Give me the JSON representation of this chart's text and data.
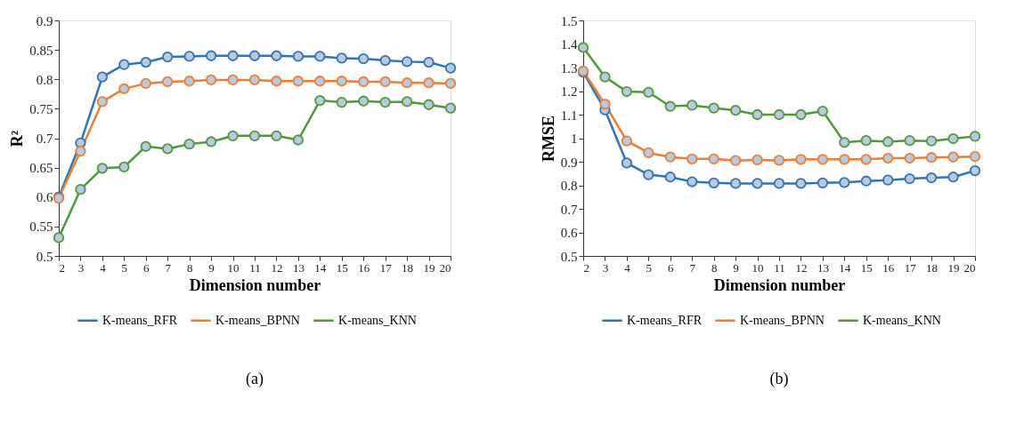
{
  "chart_data": [
    {
      "type": "line",
      "xlabel": "Dimension number",
      "ylabel": "R²",
      "x": [
        2,
        3,
        4,
        5,
        6,
        7,
        8,
        9,
        10,
        11,
        12,
        13,
        14,
        15,
        16,
        17,
        18,
        19,
        20
      ],
      "xlim": [
        2,
        20
      ],
      "xticks": [
        2,
        3,
        4,
        5,
        6,
        7,
        8,
        9,
        10,
        11,
        12,
        13,
        14,
        15,
        16,
        17,
        18,
        19,
        20
      ],
      "ylim": [
        0.5,
        0.9
      ],
      "yticks": [
        0.5,
        0.55,
        0.6,
        0.65,
        0.7,
        0.75,
        0.8,
        0.85,
        0.9
      ],
      "grid": false,
      "legend": "bottom",
      "marker": "circle",
      "line_style": "solid",
      "annotations": [
        "(a)"
      ],
      "series": [
        {
          "name": "K-means_RFR",
          "color": "#2e75b6",
          "values": [
            0.6,
            0.692,
            0.804,
            0.825,
            0.829,
            0.838,
            0.839,
            0.84,
            0.84,
            0.84,
            0.84,
            0.839,
            0.839,
            0.836,
            0.835,
            0.832,
            0.83,
            0.829,
            0.819
          ]
        },
        {
          "name": "K-means_BPNN",
          "color": "#ed7d31",
          "values": [
            0.598,
            0.678,
            0.762,
            0.784,
            0.793,
            0.796,
            0.797,
            0.799,
            0.799,
            0.799,
            0.797,
            0.797,
            0.797,
            0.797,
            0.796,
            0.796,
            0.794,
            0.794,
            0.793
          ]
        },
        {
          "name": "K-means_KNN",
          "color": "#4e9a3a",
          "values": [
            0.531,
            0.613,
            0.649,
            0.651,
            0.686,
            0.682,
            0.69,
            0.694,
            0.704,
            0.704,
            0.704,
            0.697,
            0.764,
            0.761,
            0.763,
            0.761,
            0.762,
            0.757,
            0.751
          ]
        }
      ]
    },
    {
      "type": "line",
      "xlabel": "Dimension number",
      "ylabel": "RMSE",
      "x": [
        2,
        3,
        4,
        5,
        6,
        7,
        8,
        9,
        10,
        11,
        12,
        13,
        14,
        15,
        16,
        17,
        18,
        19,
        20
      ],
      "xlim": [
        2,
        20
      ],
      "xticks": [
        2,
        3,
        4,
        5,
        6,
        7,
        8,
        9,
        10,
        11,
        12,
        13,
        14,
        15,
        16,
        17,
        18,
        19,
        20
      ],
      "ylim": [
        0.5,
        1.5
      ],
      "yticks": [
        0.5,
        0.6,
        0.7,
        0.8,
        0.9,
        1,
        1.1,
        1.2,
        1.3,
        1.4,
        1.5
      ],
      "grid": false,
      "legend": "bottom",
      "marker": "circle",
      "line_style": "solid",
      "annotations": [
        "(b)"
      ],
      "series": [
        {
          "name": "K-means_RFR",
          "color": "#2e75b6",
          "values": [
            1.28,
            1.12,
            0.895,
            0.845,
            0.835,
            0.815,
            0.81,
            0.808,
            0.808,
            0.808,
            0.808,
            0.81,
            0.812,
            0.818,
            0.822,
            0.828,
            0.832,
            0.835,
            0.862
          ]
        },
        {
          "name": "K-means_BPNN",
          "color": "#ed7d31",
          "values": [
            1.285,
            1.145,
            0.988,
            0.938,
            0.92,
            0.912,
            0.912,
            0.905,
            0.908,
            0.906,
            0.91,
            0.91,
            0.91,
            0.91,
            0.915,
            0.915,
            0.918,
            0.92,
            0.922
          ]
        },
        {
          "name": "K-means_KNN",
          "color": "#4e9a3a",
          "values": [
            1.385,
            1.26,
            1.198,
            1.195,
            1.135,
            1.14,
            1.128,
            1.118,
            1.1,
            1.1,
            1.1,
            1.115,
            0.982,
            0.99,
            0.985,
            0.99,
            0.988,
            0.998,
            1.008
          ]
        }
      ]
    }
  ]
}
